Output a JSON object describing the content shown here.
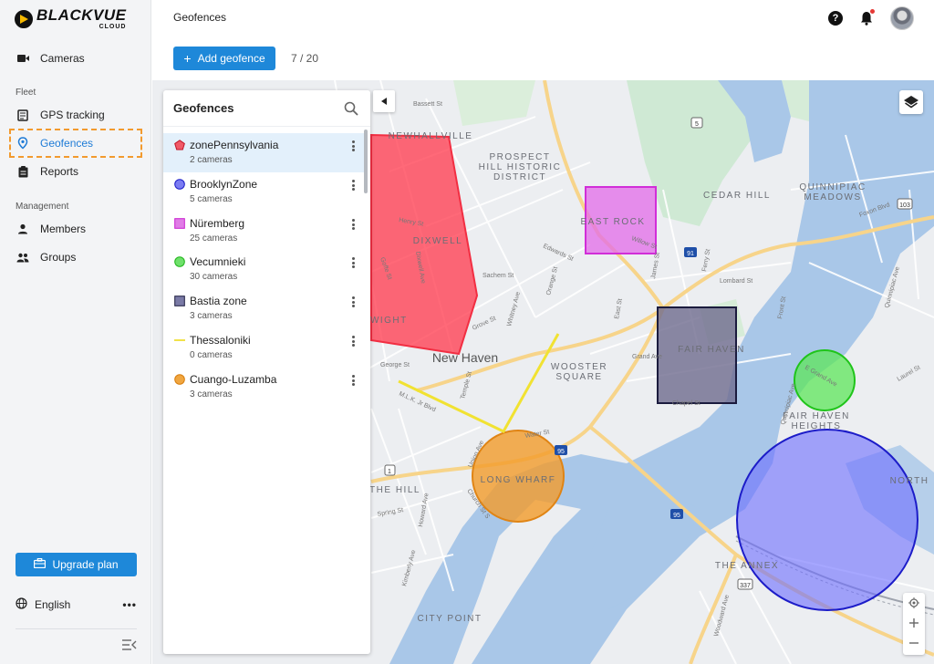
{
  "brand": {
    "name": "BLACKVUE",
    "sub": "CLOUD"
  },
  "sidebar": {
    "cameras": "Cameras",
    "fleet_label": "Fleet",
    "gps_tracking": "GPS tracking",
    "geofences": "Geofences",
    "reports": "Reports",
    "management_label": "Management",
    "members": "Members",
    "groups": "Groups",
    "upgrade_plan": "Upgrade plan",
    "language": "English",
    "more": "•••"
  },
  "header": {
    "title": "Geofences",
    "help": "?"
  },
  "toolbar": {
    "add_geofence": "Add geofence",
    "count": "7 / 20"
  },
  "panel": {
    "title": "Geofences",
    "items": [
      {
        "name": "zonePennsylvania",
        "cameras": "2 cameras",
        "shape": "polygon",
        "color": "#f05a68"
      },
      {
        "name": "BrooklynZone",
        "cameras": "5 cameras",
        "shape": "circle",
        "color": "#7b7cf2"
      },
      {
        "name": "Nüremberg",
        "cameras": "25 cameras",
        "shape": "rectangle",
        "color": "#e07ce6"
      },
      {
        "name": "Vecumnieki",
        "cameras": "30 cameras",
        "shape": "circle",
        "color": "#6fe06b"
      },
      {
        "name": "Bastia zone",
        "cameras": "3 cameras",
        "shape": "rectangle",
        "color": "#7a7aa6"
      },
      {
        "name": "Thessaloniki",
        "cameras": "0 cameras",
        "shape": "line",
        "color": "#f1e24a"
      },
      {
        "name": "Cuango-Luzamba",
        "cameras": "3 cameras",
        "shape": "circle",
        "color": "#f0a640"
      }
    ]
  },
  "map": {
    "labels": {
      "newhallville": "NEWHALLVILLE",
      "prospect_hill": "PROSPECT",
      "prospect_hill2": "HILL HISTORIC",
      "prospect_hill3": "DISTRICT",
      "cedar_hill": "CEDAR HILL",
      "quinnipiac": "QUINNIPIAC",
      "quinnipiac2": "MEADOWS",
      "east_rock": "EAST ROCK",
      "dixwell": "DIXWELL",
      "dwight": "DWIGHT",
      "new_haven": "New Haven",
      "wooster": "WOOSTER",
      "wooster2": "SQUARE",
      "fair_haven": "FAIR HAVEN",
      "fair_haven_heights": "FAIR HAVEN",
      "fair_haven_heights2": "HEIGHTS",
      "long_wharf": "LONG WHARF",
      "the_hill": "THE HILL",
      "north": "NORTH",
      "the_annex": "THE ANNEX",
      "city_point": "CITY POINT",
      "bassett": "Bassett St",
      "edwards": "Edwards St",
      "sachem": "Sachem St",
      "grove": "Grove St",
      "george": "George St",
      "mlk": "M.L.K. Jr Blvd",
      "water": "Water St",
      "union": "Union Ave",
      "church": "Church St S",
      "grand": "Grand Ave",
      "lombard": "Lombard St",
      "chapel": "Chapel St",
      "willow": "Willow St",
      "ferry": "Ferry St",
      "front": "Front St",
      "foxon": "Foxon Blvd",
      "e_grand": "E Grand Ave",
      "laurel": "Laurel St",
      "howard": "Howard Ave",
      "kimberly": "Kimberly Ave",
      "woodward": "Woodward Ave",
      "spring": "Spring St",
      "whitney": "Whitney Ave",
      "orange": "Orange St",
      "james": "James St",
      "east_st": "East St",
      "temple": "Temple St",
      "dixwell_ave": "Dixwell Ave",
      "henry": "Henry St",
      "goffe": "Goffe St",
      "quinnipiac_ave": "Quinnipiac Ave",
      "s_quinnipiac": "Quinnipiac Ave",
      "r5": "5",
      "r91": "91",
      "r103": "103",
      "r1": "1",
      "r95": "95",
      "r95b": "95",
      "r337": "337"
    }
  }
}
